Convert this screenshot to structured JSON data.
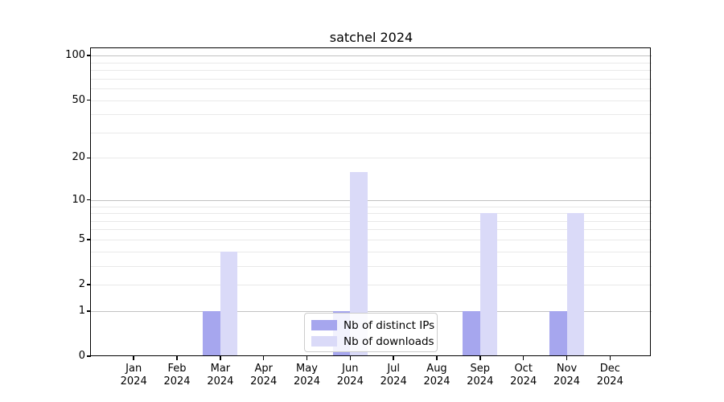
{
  "chart_data": {
    "type": "bar",
    "title": "satchel 2024",
    "categories": [
      "Jan 2024",
      "Feb 2024",
      "Mar 2024",
      "Apr 2024",
      "May 2024",
      "Jun 2024",
      "Jul 2024",
      "Aug 2024",
      "Sep 2024",
      "Oct 2024",
      "Nov 2024",
      "Dec 2024"
    ],
    "series": [
      {
        "name": "Nb of distinct IPs",
        "color": "#a6a6ee",
        "values": [
          0,
          0,
          1,
          0,
          0,
          1,
          0,
          0,
          1,
          0,
          1,
          0
        ]
      },
      {
        "name": "Nb of downloads",
        "color": "#dadaf8",
        "values": [
          0,
          0,
          4,
          0,
          0,
          16,
          0,
          0,
          8,
          0,
          8,
          0
        ]
      }
    ],
    "xlabel": "",
    "ylabel": "",
    "yscale": "log1p",
    "ylim": [
      0,
      112
    ],
    "yticks_labeled": [
      0,
      1,
      2,
      5,
      10,
      20,
      50,
      100
    ],
    "yticks_major_grid": [
      1,
      10,
      100
    ],
    "yticks_minor_grid": [
      2,
      3,
      4,
      5,
      6,
      7,
      8,
      9,
      20,
      30,
      40,
      50,
      60,
      70,
      80,
      90
    ],
    "grid": true,
    "legend_position": "lower center"
  },
  "colors": {
    "grid_major": "#c2c2c2",
    "grid_minor": "#e9e9e9",
    "spine": "#000000",
    "background": "#ffffff"
  }
}
